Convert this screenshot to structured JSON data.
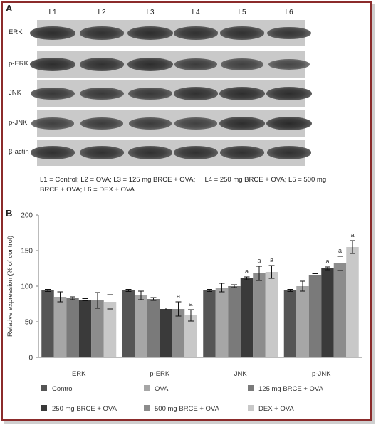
{
  "panel_a": {
    "label": "A",
    "lanes": [
      "L1",
      "L2",
      "L3",
      "L4",
      "L5",
      "L6"
    ],
    "blots": [
      {
        "name": "ERK",
        "intensity": [
          0.95,
          0.9,
          0.95,
          0.9,
          0.9,
          0.85
        ]
      },
      {
        "name": "p-ERK",
        "intensity": [
          0.95,
          0.9,
          0.95,
          0.75,
          0.7,
          0.6
        ]
      },
      {
        "name": "JNK",
        "intensity": [
          0.8,
          0.8,
          0.8,
          0.9,
          0.95,
          0.95
        ]
      },
      {
        "name": "p-JNK",
        "intensity": [
          0.7,
          0.75,
          0.75,
          0.7,
          0.95,
          1.0
        ]
      },
      {
        "name": "β-actin",
        "intensity": [
          0.9,
          0.9,
          0.9,
          0.9,
          0.9,
          0.9
        ]
      }
    ],
    "legend_line1": "L1 = Control; L2 = OVA; L3 = 125 mg BRCE + OVA;     L4 = 250 mg BRCE + OVA; L5 = 500 mg",
    "legend_line2": "BRCE + OVA; L6 = DEX + OVA"
  },
  "panel_b": {
    "label": "B"
  },
  "colors": [
    "#555555",
    "#a6a6a6",
    "#7a7a7a",
    "#3a3a3a",
    "#8c8c8c",
    "#c8c8c8"
  ],
  "chart_data": {
    "type": "bar",
    "categories": [
      "ERK",
      "p-ERK",
      "JNK",
      "p-JNK"
    ],
    "ylabel": "Relative expression (% of control)",
    "ylim": [
      0,
      200
    ],
    "yticks": [
      0,
      50,
      100,
      150,
      200
    ],
    "grid": false,
    "legend_position": "bottom",
    "series": [
      {
        "name": "Control",
        "values": [
          94,
          94,
          94,
          94
        ],
        "errors": [
          1.5,
          1.5,
          1.5,
          1.5
        ],
        "sig": [
          "",
          "",
          "",
          ""
        ]
      },
      {
        "name": "OVA",
        "values": [
          85,
          87,
          98,
          100
        ],
        "errors": [
          7,
          6,
          6,
          7
        ],
        "sig": [
          "",
          "",
          "",
          ""
        ]
      },
      {
        "name": "125 mg BRCE + OVA",
        "values": [
          83,
          82,
          100,
          116
        ],
        "errors": [
          2,
          2,
          2,
          1.5
        ],
        "sig": [
          "",
          "",
          "",
          ""
        ]
      },
      {
        "name": "250 mg BRCE + OVA",
        "values": [
          81,
          68,
          111,
          125
        ],
        "errors": [
          1.5,
          1.5,
          2,
          2
        ],
        "sig": [
          "",
          "",
          "a",
          "a"
        ]
      },
      {
        "name": "500 mg BRCE + OVA",
        "values": [
          80,
          68,
          118,
          132
        ],
        "errors": [
          11,
          10,
          10,
          10
        ],
        "sig": [
          "",
          "a",
          "a",
          "a"
        ]
      },
      {
        "name": "DEX + OVA",
        "values": [
          78,
          59,
          120,
          155
        ],
        "errors": [
          10,
          8,
          9,
          9
        ],
        "sig": [
          "",
          "a",
          "a",
          "a"
        ]
      }
    ]
  }
}
